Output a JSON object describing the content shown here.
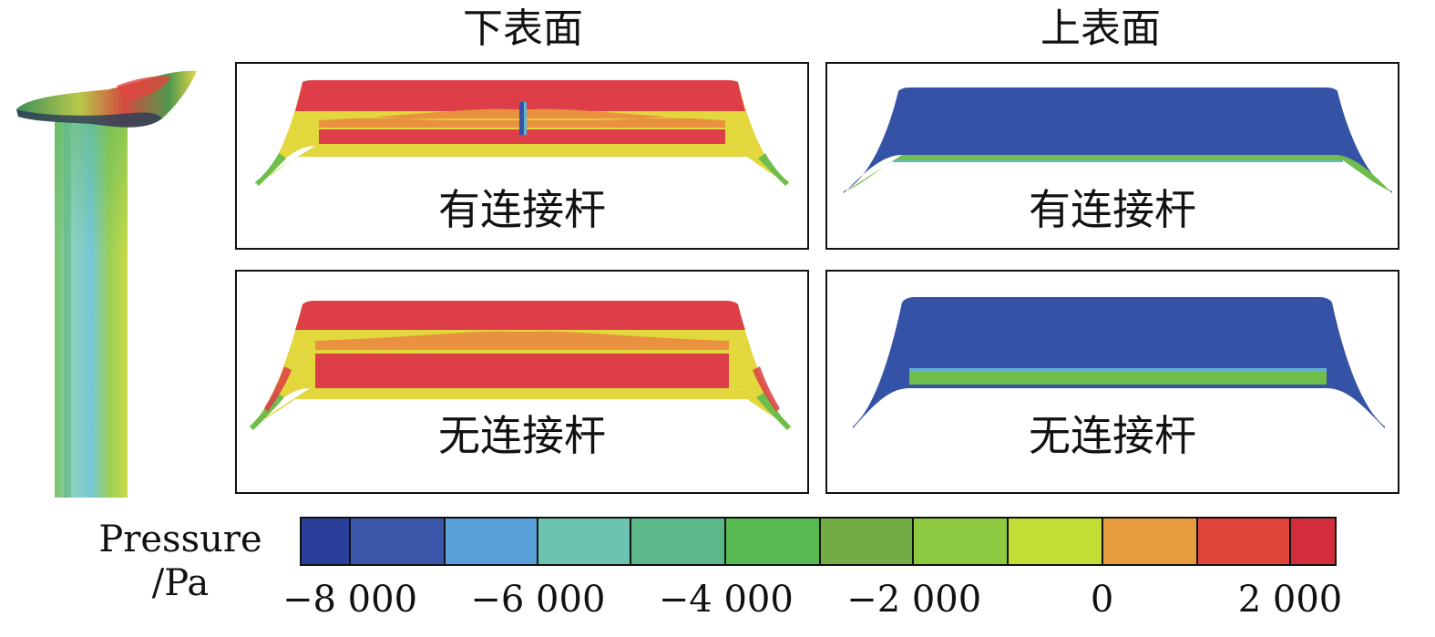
{
  "headings": {
    "lower_surface": "下表面",
    "upper_surface": "上表面"
  },
  "panels": [
    {
      "id": "lower-with-rod",
      "label": "有连接杆"
    },
    {
      "id": "upper-with-rod",
      "label": "有连接杆"
    },
    {
      "id": "lower-without-rod",
      "label": "无连接杆"
    },
    {
      "id": "upper-without-rod",
      "label": "无连接杆"
    }
  ],
  "legend": {
    "title_line1": "Pressure",
    "title_line2": "/Pa",
    "colors": [
      "#2a3f9a",
      "#3b56a8",
      "#59a0da",
      "#6cc4b0",
      "#5cb888",
      "#57bb52",
      "#73ac45",
      "#8ec942",
      "#c3dc36",
      "#e79c3e",
      "#e0453a",
      "#d42d3c"
    ],
    "ticks": [
      {
        "label": "−8 000",
        "value": -8000
      },
      {
        "label": "−6 000",
        "value": -6000
      },
      {
        "label": "−4 000",
        "value": -4000
      },
      {
        "label": "−2 000",
        "value": -2000
      },
      {
        "label": "0",
        "value": 0
      },
      {
        "label": "2 000",
        "value": 2000
      }
    ]
  },
  "surface_colors": {
    "red": "#dd3e48",
    "orange": "#e9913f",
    "yellow": "#e2d83e",
    "green": "#6fbd4a",
    "dark_blue": "#3553a6",
    "light_blue": "#63b4d4"
  }
}
